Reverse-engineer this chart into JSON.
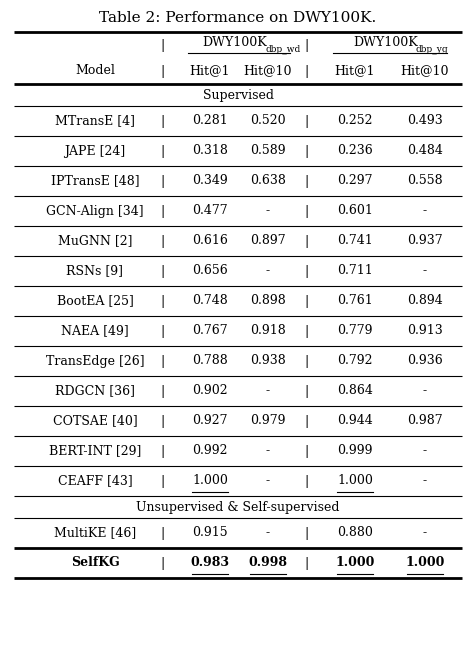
{
  "title": "Table 2: Performance on DWY100K.",
  "section1_label": "Supervised",
  "section2_label": "Unsupervised & Self-supervised",
  "col_model": "Model",
  "col_group1_main": "DWY100K",
  "col_group1_sub": "dbp_wd",
  "col_group2_main": "DWY100K",
  "col_group2_sub": "dbp_yg",
  "col_hits": [
    "Hit@1",
    "Hit@10",
    "Hit@1",
    "Hit@10"
  ],
  "rows_supervised": [
    [
      "MTransE [4]",
      "0.281",
      "0.520",
      "0.252",
      "0.493",
      false,
      []
    ],
    [
      "JAPE [24]",
      "0.318",
      "0.589",
      "0.236",
      "0.484",
      false,
      []
    ],
    [
      "IPTransE [48]",
      "0.349",
      "0.638",
      "0.297",
      "0.558",
      false,
      []
    ],
    [
      "GCN-Align [34]",
      "0.477",
      "-",
      "0.601",
      "-",
      false,
      []
    ],
    [
      "MuGNN [2]",
      "0.616",
      "0.897",
      "0.741",
      "0.937",
      false,
      []
    ],
    [
      "RSNs [9]",
      "0.656",
      "-",
      "0.711",
      "-",
      false,
      []
    ],
    [
      "BootEA [25]",
      "0.748",
      "0.898",
      "0.761",
      "0.894",
      false,
      []
    ],
    [
      "NAEA [49]",
      "0.767",
      "0.918",
      "0.779",
      "0.913",
      false,
      []
    ],
    [
      "TransEdge [26]",
      "0.788",
      "0.938",
      "0.792",
      "0.936",
      false,
      []
    ],
    [
      "RDGCN [36]",
      "0.902",
      "-",
      "0.864",
      "-",
      false,
      []
    ],
    [
      "COTSAE [40]",
      "0.927",
      "0.979",
      "0.944",
      "0.987",
      false,
      []
    ],
    [
      "BERT-INT [29]",
      "0.992",
      "-",
      "0.999",
      "-",
      false,
      []
    ],
    [
      "CEAFF [43]",
      "1.000",
      "-",
      "1.000",
      "-",
      false,
      [
        1,
        3
      ]
    ]
  ],
  "rows_unsupervised": [
    [
      "MultiKE [46]",
      "0.915",
      "-",
      "0.880",
      "-",
      false,
      []
    ],
    [
      "SelfKG",
      "0.983",
      "0.998",
      "1.000",
      "1.000",
      true,
      [
        1,
        2,
        3,
        4
      ]
    ]
  ],
  "figsize": [
    4.76,
    6.72
  ],
  "dpi": 100,
  "bg_color": "#ffffff",
  "thick_lw": 2.0,
  "thin_lw": 0.8,
  "title_fontsize": 11,
  "header_fontsize": 9,
  "data_fontsize": 9,
  "section_fontsize": 9
}
